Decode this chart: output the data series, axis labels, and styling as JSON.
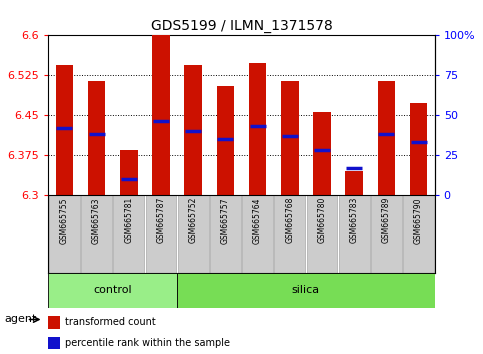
{
  "title": "GDS5199 / ILMN_1371578",
  "samples": [
    "GSM665755",
    "GSM665763",
    "GSM665781",
    "GSM665787",
    "GSM665752",
    "GSM665757",
    "GSM665764",
    "GSM665768",
    "GSM665780",
    "GSM665783",
    "GSM665789",
    "GSM665790"
  ],
  "groups": [
    "control",
    "control",
    "control",
    "control",
    "silica",
    "silica",
    "silica",
    "silica",
    "silica",
    "silica",
    "silica",
    "silica"
  ],
  "transformed_count": [
    6.545,
    6.515,
    6.385,
    6.602,
    6.545,
    6.505,
    6.548,
    6.515,
    6.455,
    6.345,
    6.515,
    6.473
  ],
  "percentile_rank": [
    42,
    38,
    10,
    46,
    40,
    35,
    43,
    37,
    28,
    17,
    38,
    33
  ],
  "ymin": 6.3,
  "ymax": 6.6,
  "yticks_left": [
    6.3,
    6.375,
    6.45,
    6.525,
    6.6
  ],
  "yticks_right_vals": [
    0,
    25,
    50,
    75,
    100
  ],
  "yticks_right_labels": [
    "0",
    "25",
    "50",
    "75",
    "100%"
  ],
  "bar_color": "#cc1100",
  "percentile_color": "#1111cc",
  "control_color": "#99ee88",
  "silica_color": "#77dd55",
  "sample_bg_color": "#cccccc",
  "agent_label": "agent",
  "legend_bar_label": "transformed count",
  "legend_pct_label": "percentile rank within the sample",
  "bar_width": 0.55,
  "n_control": 4,
  "n_silica": 8,
  "title_fontsize": 10,
  "tick_fontsize": 8,
  "sample_fontsize": 5.5,
  "group_fontsize": 8,
  "legend_fontsize": 7
}
